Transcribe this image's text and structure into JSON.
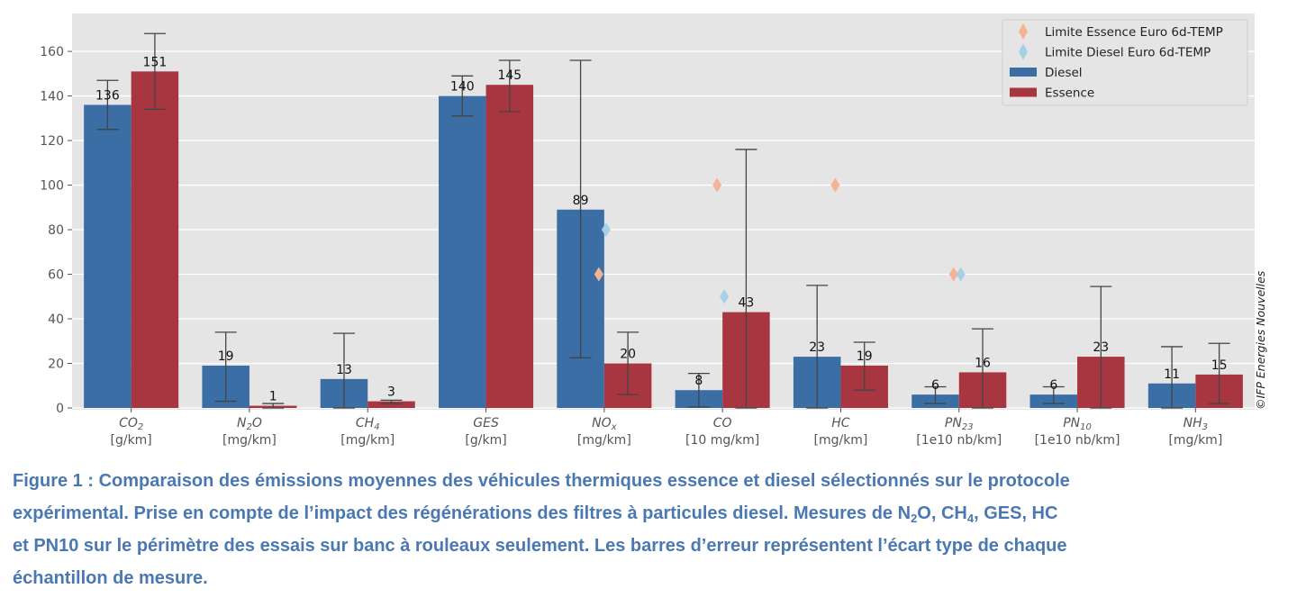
{
  "chart_data": {
    "type": "bar",
    "title": "",
    "xlabel": "",
    "ylabel": "",
    "ylim": [
      0,
      177
    ],
    "yticks": [
      0,
      20,
      40,
      60,
      80,
      100,
      120,
      140,
      160
    ],
    "grid": true,
    "legend_position": "top-right",
    "categories": [
      {
        "name": "CO",
        "sub": "2",
        "unit": "[g/km]"
      },
      {
        "name": "N",
        "sub": "2",
        "tail": "O",
        "unit": "[mg/km]"
      },
      {
        "name": "CH",
        "sub": "4",
        "unit": "[mg/km]"
      },
      {
        "name": "GES",
        "sub": "",
        "unit": "[g/km]"
      },
      {
        "name": "NO",
        "sub": "x",
        "unit": "[mg/km]"
      },
      {
        "name": "CO",
        "sub": "",
        "unit": "[10 mg/km]"
      },
      {
        "name": "HC",
        "sub": "",
        "unit": "[mg/km]"
      },
      {
        "name": "PN",
        "sub": "23",
        "unit": "[1e10 nb/km]"
      },
      {
        "name": "PN",
        "sub": "10",
        "unit": "[1e10 nb/km]"
      },
      {
        "name": "NH",
        "sub": "3",
        "unit": "[mg/km]"
      }
    ],
    "series": [
      {
        "name": "Diesel",
        "color": "#3a6ea5",
        "values": [
          136,
          19,
          13,
          140,
          89,
          8,
          23,
          6,
          6,
          11
        ],
        "err_low": [
          125,
          3,
          0,
          131,
          22.5,
          0.5,
          0,
          2,
          2,
          0
        ],
        "err_high": [
          147,
          34,
          33.5,
          149,
          156,
          15.5,
          55,
          9.5,
          9.5,
          27.5
        ]
      },
      {
        "name": "Essence",
        "color": "#a83641",
        "values": [
          151,
          1,
          3,
          145,
          20,
          43,
          19,
          16,
          23,
          15
        ],
        "err_low": [
          134,
          0,
          2,
          133,
          6,
          0,
          8,
          0,
          0,
          2
        ],
        "err_high": [
          168,
          2,
          3.5,
          156,
          34,
          116,
          29.5,
          35.5,
          54.5,
          29
        ]
      }
    ],
    "limits": [
      {
        "name": "Limite Essence Euro 6d-TEMP",
        "color": "#f4b394",
        "values": [
          null,
          null,
          null,
          null,
          60,
          100,
          100,
          60,
          null,
          null
        ]
      },
      {
        "name": "Limite Diesel Euro 6d-TEMP",
        "color": "#a6d0e4",
        "values": [
          null,
          null,
          null,
          null,
          80,
          50,
          null,
          60,
          null,
          null
        ]
      }
    ],
    "watermark": "©IFP Energies Nouvelles"
  },
  "caption": {
    "lines": [
      [
        {
          "t": "Figure 1 : Comparaison des émissions moyennes des véhicules thermiques essence et diesel sélectionnés sur le protocole"
        }
      ],
      [
        {
          "t": "expérimental. Prise en compte de l’impact des régénérations des filtres à particules diesel. Mesures de N"
        },
        {
          "s": "2"
        },
        {
          "t": "O, CH"
        },
        {
          "s": "4"
        },
        {
          "t": ", GES, HC"
        }
      ],
      [
        {
          "t": "et PN10 sur le périmètre des essais sur banc à rouleaux seulement. Les barres d’erreur représentent l’écart type de chaque"
        }
      ],
      [
        {
          "t": "échantillon de mesure."
        }
      ]
    ]
  }
}
